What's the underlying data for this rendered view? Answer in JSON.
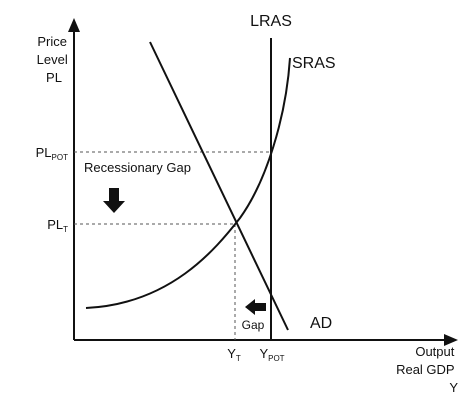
{
  "axes": {
    "y_label_lines": [
      "Price",
      "Level",
      "PL"
    ],
    "x_label_lines": [
      "Output",
      "Real GDP",
      "Y"
    ]
  },
  "curves": {
    "lras": "LRAS",
    "sras": "SRAS",
    "ad": "AD"
  },
  "ticks": {
    "pl_pot": {
      "base": "PL",
      "sub": "POT"
    },
    "pl_t": {
      "base": "PL",
      "sub": "T"
    },
    "y_t": {
      "base": "Y",
      "sub": "T"
    },
    "y_pot": {
      "base": "Y",
      "sub": "POT"
    }
  },
  "annotations": {
    "recessionary_gap": "Recessionary Gap",
    "gap": "Gap"
  },
  "arrows": {
    "recessionary_gap_arrow": "down",
    "gap_arrow": "left"
  }
}
